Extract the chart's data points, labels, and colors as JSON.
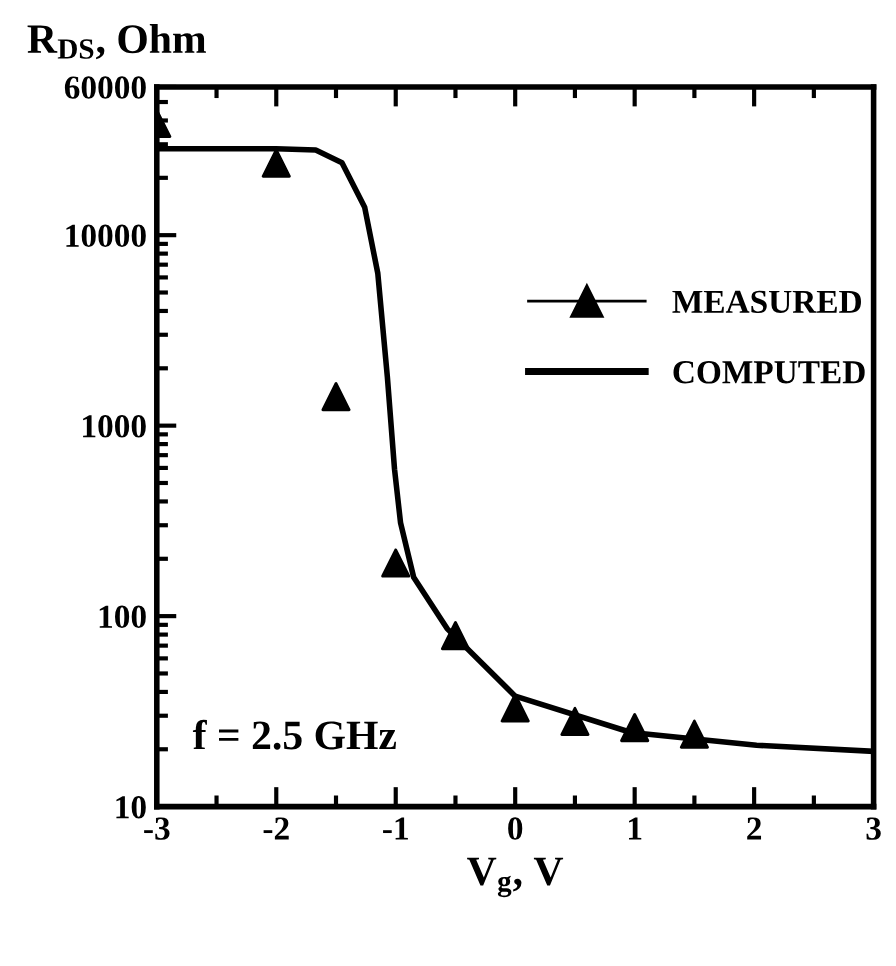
{
  "chart_data": {
    "type": "line",
    "xlabel": "V$_{g}$, V",
    "ylabel": "R$_{DS}$, Ohm",
    "log": "y",
    "xlim": [
      -3,
      3
    ],
    "ylim": [
      10,
      60000
    ],
    "xticks": [
      -3,
      -2,
      -1,
      0,
      1,
      2,
      3
    ],
    "yticks": [
      10,
      100,
      1000,
      10000,
      60000
    ],
    "grid": false,
    "legend": "right",
    "annotations": [
      "f = 2.5 GHz"
    ],
    "series": [
      {
        "name": "MEASURED",
        "type": "scatter",
        "marker": "triangle",
        "color": "#000000",
        "x": [
          -3,
          -2,
          -1.5,
          -1,
          -0.5,
          0,
          0.5,
          1,
          1.5
        ],
        "values": [
          38600,
          23900,
          1420,
          190,
          79,
          33,
          28,
          26,
          24
        ]
      },
      {
        "name": "COMPUTED",
        "marker": "none",
        "color": "#000000",
        "x": [
          -3,
          -2,
          -1.67,
          -1.45,
          -1.26,
          -1.15,
          -1.07,
          -1.01,
          -0.96,
          -0.85,
          -0.57,
          0,
          0.97,
          2.02,
          3
        ],
        "values": [
          28400,
          28400,
          28000,
          24000,
          14000,
          6300,
          1800,
          590,
          310,
          160,
          86,
          38,
          24.5,
          21,
          19.5
        ]
      }
    ]
  }
}
